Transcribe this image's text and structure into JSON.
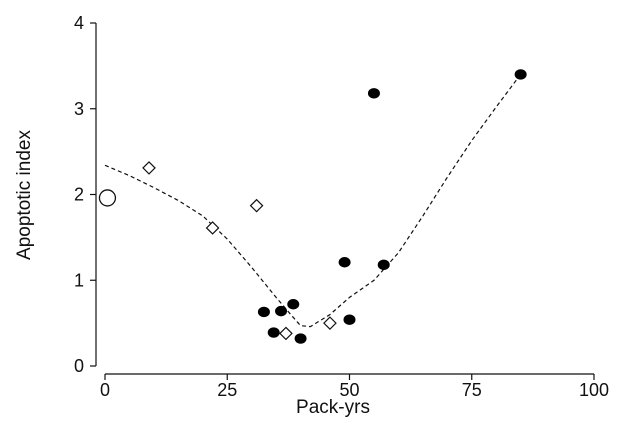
{
  "chart_data": {
    "type": "scatter",
    "xlabel": "Pack-yrs",
    "ylabel": "Apoptotic index",
    "xlim": [
      0,
      100
    ],
    "ylim": [
      0,
      4
    ],
    "x_ticks": [
      0,
      25,
      50,
      75,
      100
    ],
    "y_ticks": [
      0,
      1,
      2,
      3,
      4
    ],
    "grid": false,
    "series": [
      {
        "marker": "open-circle",
        "points": [
          {
            "x": 0.5,
            "y": 1.96
          }
        ]
      },
      {
        "marker": "open-diamond",
        "points": [
          {
            "x": 9,
            "y": 2.31
          },
          {
            "x": 22,
            "y": 1.61
          },
          {
            "x": 31,
            "y": 1.87
          },
          {
            "x": 37,
            "y": 0.38
          },
          {
            "x": 46,
            "y": 0.5
          }
        ]
      },
      {
        "marker": "filled-circle",
        "points": [
          {
            "x": 32.5,
            "y": 0.63
          },
          {
            "x": 34.5,
            "y": 0.39
          },
          {
            "x": 36,
            "y": 0.64
          },
          {
            "x": 38.5,
            "y": 0.72
          },
          {
            "x": 40,
            "y": 0.32
          },
          {
            "x": 49,
            "y": 1.21
          },
          {
            "x": 50,
            "y": 0.54
          },
          {
            "x": 55,
            "y": 3.18
          },
          {
            "x": 57,
            "y": 1.18
          },
          {
            "x": 85,
            "y": 3.4
          }
        ]
      }
    ],
    "trend_line": {
      "style": "dashed",
      "points": [
        {
          "x": 0,
          "y": 2.34
        },
        {
          "x": 5,
          "y": 2.22
        },
        {
          "x": 10,
          "y": 2.08
        },
        {
          "x": 15,
          "y": 1.93
        },
        {
          "x": 20,
          "y": 1.75
        },
        {
          "x": 25,
          "y": 1.48
        },
        {
          "x": 30,
          "y": 1.15
        },
        {
          "x": 35,
          "y": 0.8
        },
        {
          "x": 38,
          "y": 0.6
        },
        {
          "x": 40,
          "y": 0.47
        },
        {
          "x": 42,
          "y": 0.46
        },
        {
          "x": 46,
          "y": 0.6
        },
        {
          "x": 50,
          "y": 0.8
        },
        {
          "x": 55,
          "y": 1.0
        },
        {
          "x": 60,
          "y": 1.32
        },
        {
          "x": 65,
          "y": 1.75
        },
        {
          "x": 70,
          "y": 2.2
        },
        {
          "x": 75,
          "y": 2.63
        },
        {
          "x": 80,
          "y": 3.02
        },
        {
          "x": 85,
          "y": 3.4
        }
      ]
    }
  }
}
